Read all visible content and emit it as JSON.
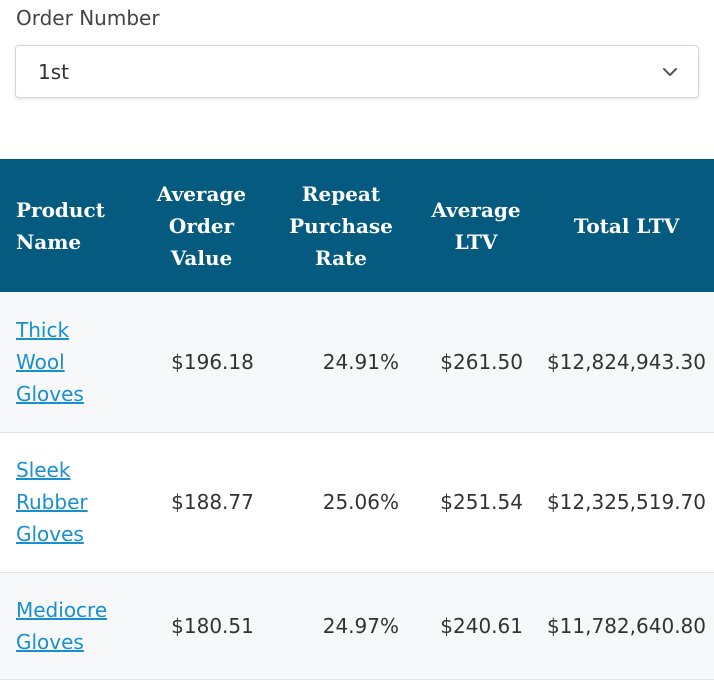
{
  "filter": {
    "label": "Order Number",
    "selected": "1st"
  },
  "table": {
    "headers": {
      "product_name": [
        "Product",
        "Name"
      ],
      "average_order_value": [
        "Average",
        "Order",
        "Value"
      ],
      "repeat_purchase_rate": [
        "Repeat",
        "Purchase",
        "Rate"
      ],
      "average_ltv": [
        "Average",
        "LTV"
      ],
      "total_ltv": [
        "Total LTV"
      ]
    },
    "rows": [
      {
        "product_lines": [
          "Thick",
          "Wool",
          "Gloves"
        ],
        "average_order_value": "$196.18",
        "repeat_purchase_rate": "24.91%",
        "average_ltv": "$261.50",
        "total_ltv": "$12,824,943.30"
      },
      {
        "product_lines": [
          "Sleek",
          "Rubber",
          "Gloves"
        ],
        "average_order_value": "$188.77",
        "repeat_purchase_rate": "25.06%",
        "average_ltv": "$251.54",
        "total_ltv": "$12,325,519.70"
      },
      {
        "product_lines": [
          "Mediocre",
          "Gloves"
        ],
        "average_order_value": "$180.51",
        "repeat_purchase_rate": "24.97%",
        "average_ltv": "$240.61",
        "total_ltv": "$11,782,640.80"
      }
    ]
  },
  "colors": {
    "header_bg": "#045a7f",
    "link": "#1a8fce",
    "row_alt_bg": "#f6f8fa"
  },
  "icons": {
    "select_indicator": "chevron-down-icon"
  }
}
